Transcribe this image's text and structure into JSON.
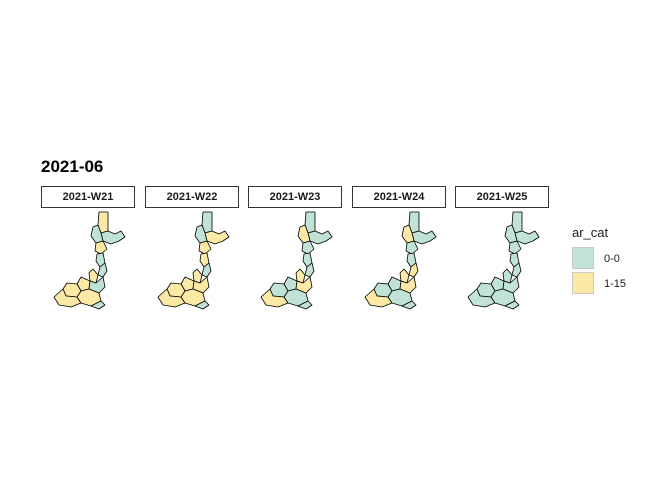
{
  "title": "2021-06",
  "facets": [
    {
      "label": "2021-W21",
      "regions": [
        "1-15",
        "0-0",
        "0-0",
        "1-15",
        "0-0",
        "0-0",
        "1-15",
        "1-15",
        "0-0",
        "1-15",
        "1-15",
        "1-15",
        "0-0"
      ]
    },
    {
      "label": "2021-W22",
      "regions": [
        "0-0",
        "1-15",
        "0-0",
        "1-15",
        "1-15",
        "0-0",
        "1-15",
        "1-15",
        "1-15",
        "1-15",
        "1-15",
        "1-15",
        "0-0"
      ]
    },
    {
      "label": "2021-W23",
      "regions": [
        "0-0",
        "0-0",
        "1-15",
        "0-0",
        "0-0",
        "0-0",
        "1-15",
        "0-0",
        "1-15",
        "0-0",
        "1-15",
        "0-0",
        "0-0"
      ]
    },
    {
      "label": "2021-W24",
      "regions": [
        "0-0",
        "0-0",
        "1-15",
        "0-0",
        "0-0",
        "1-15",
        "1-15",
        "0-0",
        "1-15",
        "0-0",
        "1-15",
        "0-0",
        "0-0"
      ]
    },
    {
      "label": "2021-W25",
      "regions": [
        "0-0",
        "0-0",
        "0-0",
        "0-0",
        "0-0",
        "0-0",
        "0-0",
        "0-0",
        "0-0",
        "0-0",
        "0-0",
        "0-0",
        "0-0"
      ]
    }
  ],
  "legend": {
    "title": "ar_cat",
    "items": [
      {
        "label": "0-0",
        "color": "#c1e3d6"
      },
      {
        "label": "1-15",
        "color": "#fde9a6"
      }
    ]
  }
}
